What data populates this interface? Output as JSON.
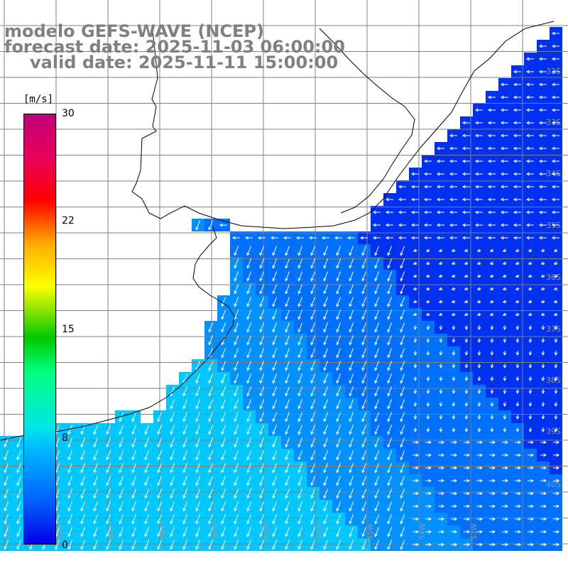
{
  "title": {
    "line1": "modelo GEFS-WAVE (NCEP)",
    "line2": "forecast date: 2025-11-03 06:00:00",
    "line3": "valid date: 2025-11-11 15:00:00"
  },
  "colorbar": {
    "unit": "[m/s]",
    "ticks": [
      "30",
      "22",
      "15",
      "8",
      "0"
    ],
    "tick_values": [
      30,
      22,
      15,
      8,
      0
    ],
    "range": [
      0,
      30
    ],
    "colors": [
      "#0000e8",
      "#0060ff",
      "#00b8ff",
      "#00e6e6",
      "#00ff80",
      "#00c800",
      "#ffff00",
      "#ffaa00",
      "#ff0000",
      "#c0007a"
    ]
  },
  "map": {
    "lat_labels": [
      "32S",
      "33S",
      "34S",
      "35S",
      "36S",
      "37S",
      "38S",
      "39S",
      "40S"
    ],
    "lon_labels": [
      "62W",
      "61W",
      "60W",
      "59W",
      "58W",
      "57W",
      "56W",
      "55W",
      "54W",
      "53W"
    ],
    "grid_color": "#808080",
    "coastline_color": "#000000",
    "ocean_colors": {
      "coastal": "#00c8ff",
      "mid": "#0090ff",
      "deep": "#0030f0"
    },
    "arrow_color": "#ffffff"
  }
}
